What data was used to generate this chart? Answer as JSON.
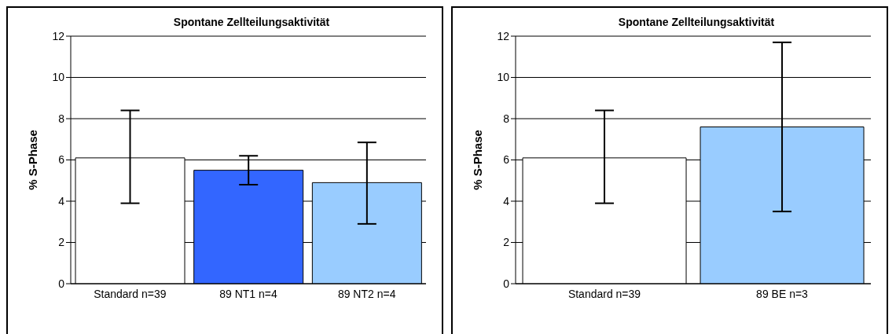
{
  "chart_data": [
    {
      "type": "bar",
      "title": "Spontane Zellteilungsaktivität",
      "ylabel": "% S-Phase",
      "categories": [
        "Standard n=39",
        "89 NT1 n=4",
        "89 NT2 n=4"
      ],
      "values": [
        6.1,
        5.5,
        4.9
      ],
      "colors": [
        "#ffffff",
        "#3366ff",
        "#99ccff"
      ],
      "errors": [
        [
          3.9,
          8.4
        ],
        [
          4.8,
          6.2
        ],
        [
          2.9,
          6.85
        ]
      ],
      "ylim": [
        0,
        12
      ],
      "yticks": [
        0,
        2,
        4,
        6,
        8,
        10,
        12
      ],
      "grid": "y"
    },
    {
      "type": "bar",
      "title": "Spontane Zellteilungsaktivität",
      "ylabel": "% S-Phase",
      "categories": [
        "Standard n=39",
        "89 BE n=3"
      ],
      "values": [
        6.1,
        7.6
      ],
      "colors": [
        "#ffffff",
        "#99ccff"
      ],
      "errors": [
        [
          3.9,
          8.4
        ],
        [
          3.5,
          11.7
        ]
      ],
      "ylim": [
        0,
        12
      ],
      "yticks": [
        0,
        2,
        4,
        6,
        8,
        10,
        12
      ],
      "grid": "y"
    }
  ]
}
